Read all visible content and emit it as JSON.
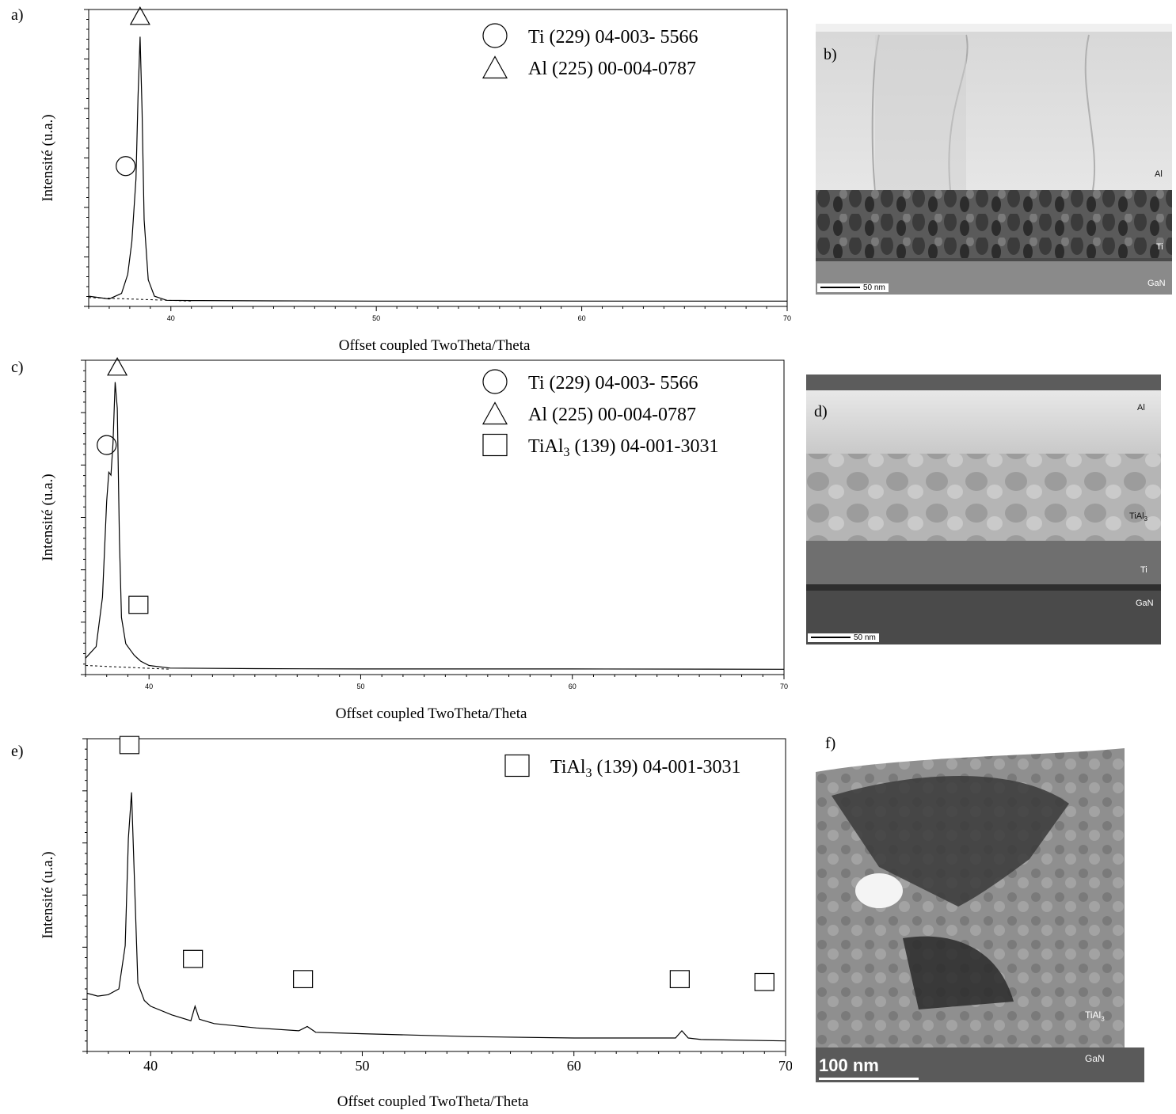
{
  "panels": {
    "a": "a)",
    "b": "b)",
    "c": "c)",
    "d": "d)",
    "e": "e)",
    "f": "f)"
  },
  "tem_images": {
    "b": {
      "labels": [
        "Al",
        "Ti",
        "GaN"
      ],
      "scale": "50 nm"
    },
    "d": {
      "labels": [
        "Al",
        "TiAl",
        "Ti",
        "GaN"
      ],
      "sub": "3",
      "scale": "50 nm"
    },
    "f": {
      "labels": [
        "TiAl",
        "GaN"
      ],
      "sub": "3",
      "scale": "100 nm"
    }
  },
  "chart_data": [
    {
      "type": "line",
      "panel": "a",
      "xlabel": "Offset coupled TwoTheta/Theta",
      "ylabel": "Intensité (u.a.)",
      "xlim": [
        36,
        70
      ],
      "xticks": [
        40,
        50,
        60,
        70
      ],
      "legend": [
        {
          "marker": "circle",
          "text": "Ti (229) 04-003- 5566"
        },
        {
          "marker": "triangle",
          "text": "Al (225) 00-004-0787"
        }
      ],
      "markers": [
        {
          "marker": "triangle",
          "x": 38.5,
          "y": 1.0
        },
        {
          "marker": "circle",
          "x": 37.8,
          "y": 0.45
        }
      ],
      "series": [
        {
          "x": [
            36.0,
            37.0,
            37.6,
            37.9,
            38.1,
            38.3,
            38.4,
            38.5,
            38.6,
            38.7,
            38.9,
            39.2,
            39.8,
            41,
            45,
            50,
            60,
            70
          ],
          "y": [
            0.02,
            0.01,
            0.03,
            0.1,
            0.22,
            0.45,
            0.75,
            0.97,
            0.7,
            0.3,
            0.08,
            0.02,
            0.005,
            0.004,
            0.003,
            0.002,
            0.002,
            0.002
          ]
        }
      ]
    },
    {
      "type": "line",
      "panel": "c",
      "xlabel": "Offset coupled TwoTheta/Theta",
      "ylabel": "Intensité (u.a.)",
      "xlim": [
        37,
        70
      ],
      "xticks": [
        40,
        50,
        60,
        70
      ],
      "legend": [
        {
          "marker": "circle",
          "text": "Ti (229) 04-003- 5566"
        },
        {
          "marker": "triangle",
          "text": "Al (225) 00-004-0787"
        },
        {
          "marker": "square",
          "text": "TiAl",
          "sub": "3",
          "tail": " (139) 04-001-3031"
        }
      ],
      "markers": [
        {
          "marker": "triangle",
          "x": 38.5,
          "y": 1.0
        },
        {
          "marker": "circle",
          "x": 38.0,
          "y": 0.73
        },
        {
          "marker": "square",
          "x": 39.5,
          "y": 0.18
        }
      ],
      "series": [
        {
          "x": [
            37.0,
            37.5,
            37.8,
            38.0,
            38.1,
            38.2,
            38.3,
            38.4,
            38.5,
            38.6,
            38.7,
            38.9,
            39.1,
            39.3,
            39.6,
            40.0,
            41,
            45,
            50,
            60,
            70
          ],
          "y": [
            0.04,
            0.08,
            0.25,
            0.58,
            0.68,
            0.67,
            0.78,
            0.99,
            0.9,
            0.45,
            0.18,
            0.09,
            0.07,
            0.05,
            0.03,
            0.015,
            0.006,
            0.004,
            0.003,
            0.003,
            0.002
          ]
        }
      ]
    },
    {
      "type": "line",
      "panel": "e",
      "xlabel": "Offset coupled TwoTheta/Theta",
      "ylabel": "Intensité (u.a.)",
      "xlim": [
        37,
        70
      ],
      "xticks": [
        40,
        50,
        60,
        70
      ],
      "legend": [
        {
          "marker": "square",
          "text": "TiAl",
          "sub": "3",
          "tail": " (139) 04-001-3031"
        }
      ],
      "markers": [
        {
          "marker": "square",
          "x": 39.0,
          "y": 1.0
        },
        {
          "marker": "square",
          "x": 42.0,
          "y": 0.26
        },
        {
          "marker": "square",
          "x": 47.2,
          "y": 0.19
        },
        {
          "marker": "square",
          "x": 65.0,
          "y": 0.19
        },
        {
          "marker": "square",
          "x": 69.0,
          "y": 0.18
        }
      ],
      "series": [
        {
          "x": [
            37.0,
            37.5,
            38.0,
            38.5,
            38.8,
            38.95,
            39.1,
            39.25,
            39.4,
            39.7,
            40.0,
            41.0,
            41.9,
            42.1,
            42.3,
            43.0,
            45.0,
            47.0,
            47.4,
            47.8,
            50.0,
            55.0,
            60.0,
            64.8,
            65.1,
            65.4,
            66.0,
            70.0
          ],
          "y": [
            0.185,
            0.175,
            0.18,
            0.2,
            0.35,
            0.72,
            0.88,
            0.55,
            0.22,
            0.16,
            0.14,
            0.11,
            0.09,
            0.14,
            0.095,
            0.08,
            0.065,
            0.055,
            0.07,
            0.05,
            0.045,
            0.035,
            0.03,
            0.03,
            0.055,
            0.03,
            0.025,
            0.02
          ]
        }
      ]
    }
  ]
}
